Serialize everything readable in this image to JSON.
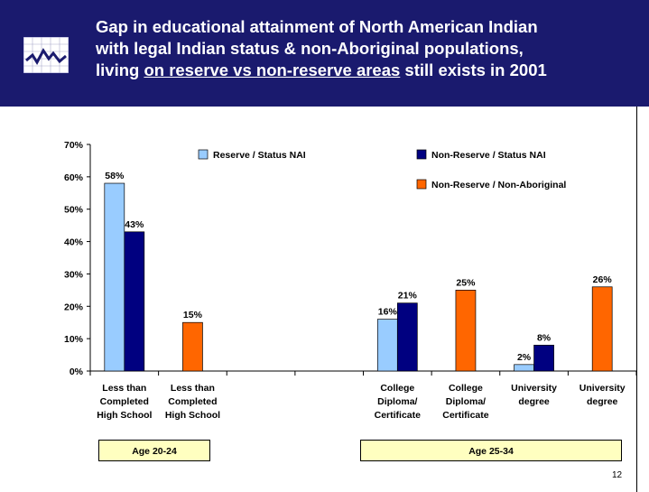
{
  "header": {
    "title_line1": "Gap in educational attainment of North American Indian",
    "title_line2": "with legal Indian status & non-Aboriginal populations,",
    "title_line3_prefix": "living ",
    "title_line3_underlined": "on reserve vs non-reserve areas",
    "title_line3_suffix": " still exists in 2001",
    "logo_icon": "line-chart-icon"
  },
  "colors": {
    "header_bg": "#1a1a6e",
    "reserve": "#99ccff",
    "non_reserve_status": "#000080",
    "non_aboriginal": "#ff6600",
    "age_box": "#ffffc0"
  },
  "chart_data": {
    "type": "bar",
    "categories": [
      [
        "Less than",
        "Completed",
        "High School"
      ],
      [
        "Less than",
        "Completed",
        "High School"
      ],
      [
        "",
        "",
        ""
      ],
      [
        "",
        "",
        ""
      ],
      [
        "College",
        "Diploma/",
        "Certificate"
      ],
      [
        "College",
        "Diploma/",
        "Certificate"
      ],
      [
        "University",
        "degree",
        ""
      ],
      [
        "University",
        "degree",
        ""
      ]
    ],
    "series": [
      {
        "name": "Reserve / Status NAI",
        "color": "#99ccff",
        "values": [
          58,
          null,
          null,
          null,
          16,
          null,
          2,
          null
        ]
      },
      {
        "name": "Non-Reserve / Status NAI",
        "color": "#000080",
        "values": [
          43,
          null,
          null,
          null,
          21,
          null,
          8,
          null
        ]
      },
      {
        "name": "Non-Reserve / Non-Aboriginal",
        "color": "#ff6600",
        "values": [
          null,
          15,
          null,
          null,
          null,
          25,
          null,
          26
        ]
      }
    ],
    "data_labels": [
      [
        "58%",
        null,
        null,
        null,
        "16%",
        null,
        "2%",
        null
      ],
      [
        "43%",
        null,
        null,
        null,
        "21%",
        null,
        "8%",
        null
      ],
      [
        null,
        "15%",
        null,
        null,
        null,
        "25%",
        null,
        "26%"
      ]
    ],
    "y_ticks": [
      "0%",
      "10%",
      "20%",
      "30%",
      "40%",
      "50%",
      "60%",
      "70%"
    ],
    "ylim": [
      0,
      70
    ],
    "ystep": 10,
    "legend_position": "top",
    "grid": false,
    "groups": [
      {
        "label": "Age 20-24"
      },
      {
        "label": "Age 25-34"
      }
    ]
  },
  "page_number": "12"
}
